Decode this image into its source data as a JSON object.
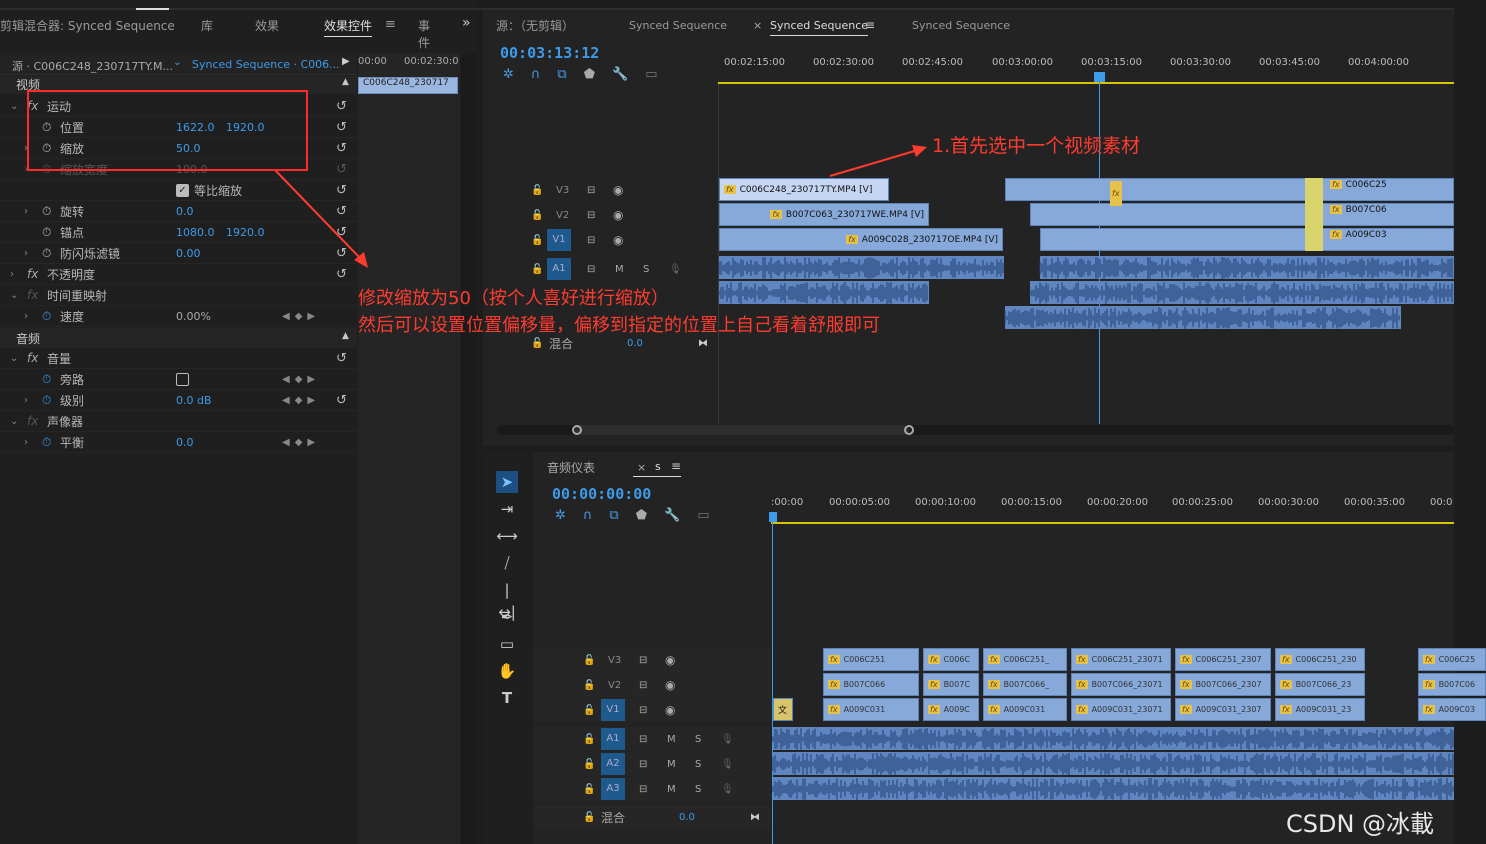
{
  "left_tabs": [
    "剪辑混合器: Synced Sequence",
    "库",
    "效果",
    "效果控件",
    "事件"
  ],
  "left_tab_menu": "≡",
  "left_tab_more": "»",
  "source_clip": "源 · C006C248_230717TY.M...",
  "sequence_select": "Synced Sequence · C006...",
  "mini_ruler": [
    "00:00",
    "00:02:30:0"
  ],
  "mini_clip": "C006C248_230717",
  "ec": {
    "video_header": "视频",
    "motion": "运动",
    "position_label": "位置",
    "position_x": "1622.0",
    "position_y": "1920.0",
    "scale_label": "缩放",
    "scale_value": "50.0",
    "scale_width_label": "缩放宽度",
    "scale_width_value": "100.0",
    "uniform_label": "等比缩放",
    "rotation_label": "旋转",
    "rotation_value": "0.0",
    "anchor_label": "锚点",
    "anchor_x": "1080.0",
    "anchor_y": "1920.0",
    "flicker_label": "防闪烁滤镜",
    "flicker_value": "0.00",
    "opacity_label": "不透明度",
    "time_remap_label": "时间重映射",
    "speed_label": "速度",
    "speed_value": "0.00%",
    "audio_header": "音频",
    "volume_label": "音量",
    "bypass_label": "旁路",
    "level_label": "级别",
    "level_value": "0.0 dB",
    "panner_label": "声像器",
    "balance_label": "平衡",
    "balance_value": "0.0"
  },
  "top_tabs": [
    "源：（无剪辑）",
    "Synced Sequence",
    "Synced Sequence",
    "Synced Sequence"
  ],
  "top_tab_close": "×",
  "top_tab_menu": "≡",
  "top_timecode": "00:03:13:12",
  "top_ruler": [
    "00:02:15:00",
    "00:02:30:00",
    "00:02:45:00",
    "00:03:00:00",
    "00:03:15:00",
    "00:03:30:00",
    "00:03:45:00",
    "00:04:00:00"
  ],
  "top_tracks": {
    "v3": "V3",
    "v2": "V2",
    "v1": "V1",
    "a1": "A1",
    "mix": "混合",
    "mix_value": "0.0",
    "m": "M",
    "s": "S"
  },
  "top_clips": {
    "v3_main": "C006C248_230717TY.MP4 [V]",
    "v2_main": "B007C063_230717WE.MP4 [V]",
    "v1_main": "A009C028_230717OE.MP4 [V]",
    "v3_right": "C006C25",
    "v2_right": "B007C06",
    "v1_right": "A009C03"
  },
  "annotations": {
    "a1": "1.首先选中一个视频素材",
    "a2_line1": "修改缩放为50（按个人喜好进行缩放）",
    "a2_line2": "然后可以设置位置偏移量，偏移到指定的位置上自己看着舒服即可",
    "color": "#ff3b30"
  },
  "bottom_tab": "音频仪表",
  "bottom_tab_close": "×",
  "bottom_tab_s": "s",
  "bottom_tab_menu": "≡",
  "bottom_timecode": "00:00:00:00",
  "bottom_ruler": [
    ":00:00",
    "00:00:05:00",
    "00:00:10:00",
    "00:00:15:00",
    "00:00:20:00",
    "00:00:25:00",
    "00:00:30:00",
    "00:00:35:00",
    "00:0"
  ],
  "bottom_tracks": {
    "v3": "V3",
    "v2": "V2",
    "v1": "V1",
    "a1": "A1",
    "a2": "A2",
    "a3": "A3",
    "mix": "混合",
    "mix_value": "0.0",
    "m": "M",
    "s": "S"
  },
  "bottom_clips_v3": [
    "C006C251",
    "C006C",
    "C006C251_",
    "C006C251_23071",
    "C006C251_2307",
    "C006C251_230",
    "C006C25"
  ],
  "bottom_clips_v2": [
    "B007C066",
    "B007C",
    "B007C066_",
    "B007C066_23071",
    "B007C066_2307",
    "B007C066_23",
    "B007C06"
  ],
  "bottom_clips_v1": [
    "A009C031",
    "A009C",
    "A009C031",
    "A009C031_23071",
    "A009C031_2307",
    "A009C031_23",
    "A009C03"
  ],
  "bottom_v1_first": "文",
  "watermark": "CSDN @冰載"
}
